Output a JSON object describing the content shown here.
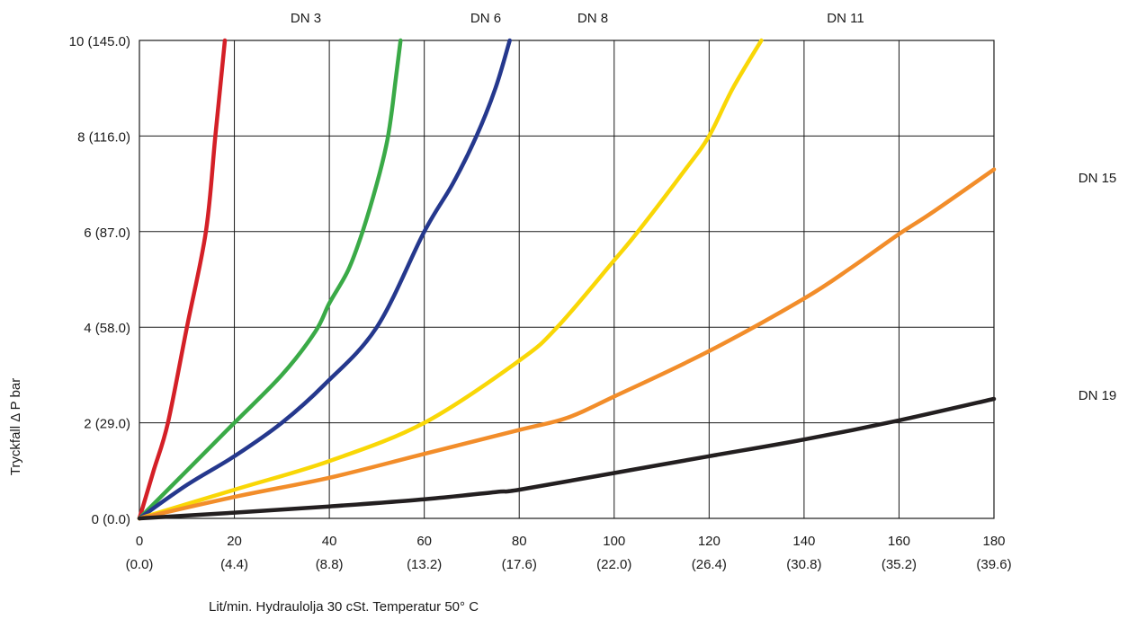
{
  "chart_data": {
    "type": "line",
    "xlabel": "Lit/min. Hydraulolja 30 cSt. Temperatur 50° C",
    "ylabel": "Tryckfall  Δ P bar",
    "xlim": [
      0,
      180
    ],
    "ylim": [
      0,
      10
    ],
    "grid": true,
    "x_ticks": [
      {
        "value": 0,
        "label": "0",
        "sublabel": "(0.0)"
      },
      {
        "value": 20,
        "label": "20",
        "sublabel": "(4.4)"
      },
      {
        "value": 40,
        "label": "40",
        "sublabel": "(8.8)"
      },
      {
        "value": 60,
        "label": "60",
        "sublabel": "(13.2)"
      },
      {
        "value": 80,
        "label": "80",
        "sublabel": "(17.6)"
      },
      {
        "value": 100,
        "label": "100",
        "sublabel": "(22.0)"
      },
      {
        "value": 120,
        "label": "120",
        "sublabel": "(26.4)"
      },
      {
        "value": 140,
        "label": "140",
        "sublabel": "(30.8)"
      },
      {
        "value": 160,
        "label": "160",
        "sublabel": "(35.2)"
      },
      {
        "value": 180,
        "label": "180",
        "sublabel": "(39.6)"
      }
    ],
    "y_ticks": [
      {
        "value": 0,
        "label": "0     (0.0)"
      },
      {
        "value": 2,
        "label": "2   (29.0)"
      },
      {
        "value": 4,
        "label": "4   (58.0)"
      },
      {
        "value": 6,
        "label": "6   (87.0)"
      },
      {
        "value": 8,
        "label": "8 (116.0)"
      },
      {
        "value": 10,
        "label": "10 (145.0)"
      }
    ],
    "series": [
      {
        "name": "DN 3",
        "color": "#d42027",
        "x": [
          0,
          3,
          6,
          10,
          14,
          16,
          18
        ],
        "y": [
          0,
          1,
          2,
          4,
          6,
          8,
          10
        ]
      },
      {
        "name": "DN 6",
        "color": "#3aaa47",
        "x": [
          0,
          10,
          20,
          30,
          37,
          40,
          44,
          47,
          50,
          52,
          53,
          54,
          55
        ],
        "y": [
          0,
          1,
          2,
          3,
          3.9,
          4.5,
          5.2,
          6,
          7,
          7.8,
          8.4,
          9.2,
          10
        ]
      },
      {
        "name": "DN 8",
        "color": "#25388d",
        "x": [
          0,
          10,
          20,
          30,
          39,
          50,
          60,
          66,
          71,
          75,
          78
        ],
        "y": [
          0,
          0.7,
          1.3,
          2,
          2.8,
          4,
          6,
          7,
          8,
          9,
          10
        ]
      },
      {
        "name": "DN 11",
        "color": "#f9d706",
        "x": [
          0,
          20,
          40,
          60,
          80,
          88,
          100,
          105,
          115,
          120,
          125,
          131
        ],
        "y": [
          0,
          0.6,
          1.2,
          2,
          3.3,
          4,
          5.4,
          6,
          7.3,
          8,
          9,
          10
        ]
      },
      {
        "name": "DN 15",
        "color": "#f28d2a",
        "x": [
          0,
          20,
          40,
          60,
          80,
          90,
          100,
          120,
          140,
          150,
          160,
          167,
          180
        ],
        "y": [
          0,
          0.45,
          0.85,
          1.35,
          1.85,
          2.1,
          2.55,
          3.5,
          4.6,
          5.25,
          5.95,
          6.4,
          7.3
        ]
      },
      {
        "name": "DN 19",
        "color": "#231f20",
        "x": [
          0,
          20,
          40,
          60,
          75,
          80,
          100,
          120,
          140,
          160,
          180
        ],
        "y": [
          0,
          0.12,
          0.25,
          0.4,
          0.55,
          0.6,
          0.95,
          1.3,
          1.65,
          2.05,
          2.5
        ]
      }
    ],
    "series_labels": [
      "DN 3",
      "DN 6",
      "DN 8",
      "DN 11",
      "DN 15",
      "DN 19"
    ]
  }
}
